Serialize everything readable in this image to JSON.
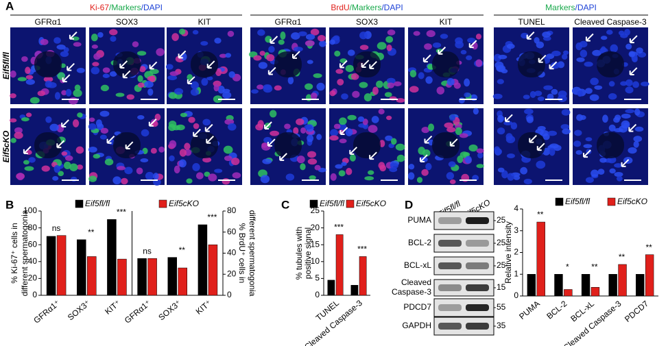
{
  "panel_a": {
    "letter": "A",
    "groups": [
      {
        "parts": [
          {
            "text": "Ki-67",
            "color": "#e0201b"
          },
          {
            "text": "/Markers",
            "color": "#17a84a"
          },
          {
            "text": "/DAPI",
            "color": "#1a3fd6"
          }
        ],
        "columns": [
          "GFRα1",
          "SOX3",
          "KIT"
        ]
      },
      {
        "parts": [
          {
            "text": "BrdU",
            "color": "#e0201b"
          },
          {
            "text": "/Markers",
            "color": "#17a84a"
          },
          {
            "text": "/DAPI",
            "color": "#1a3fd6"
          }
        ],
        "columns": [
          "GFRα1",
          "SOX3",
          "KIT"
        ]
      },
      {
        "parts": [
          {
            "text": "Markers",
            "color": "#17a84a"
          },
          {
            "text": "/DAPI",
            "color": "#1a3fd6"
          }
        ],
        "columns": [
          "TUNEL",
          "Cleaved Caspase-3"
        ]
      }
    ],
    "rows": [
      "Eif5fl/fl",
      "Eif5cKO"
    ]
  },
  "panel_d_blot": {
    "letter": "D",
    "lanes": [
      "Eif5fl/fl",
      "Eif5cKO"
    ],
    "proteins": [
      "PUMA",
      "BCL-2",
      "BCL-xL",
      "Cleaved Caspase-3",
      "PDCD7",
      "GAPDH"
    ],
    "kda": [
      25,
      25,
      25,
      15,
      55,
      35
    ]
  },
  "chart_data": [
    {
      "type": "bar",
      "letter": "B",
      "ylabel": [
        "% Ki-67⁺ cells in",
        "different spermatogonia"
      ],
      "y2label": [
        "% BrdU⁺ cells in",
        "different spermatogonia"
      ],
      "categories": [
        "GFRα1⁺",
        "SOX3⁺",
        "KIT⁺",
        "GFRα1⁺",
        "SOX3⁺",
        "KIT⁺"
      ],
      "category_axis": [
        "y",
        "y",
        "y",
        "y2",
        "y2",
        "y2"
      ],
      "series": [
        {
          "name": "Eif5fl/fl",
          "color": "#000000",
          "values": [
            70,
            66,
            90,
            35,
            36,
            67
          ]
        },
        {
          "name": "Eif5cKO",
          "color": "#e0201b",
          "values": [
            71,
            46,
            43,
            35,
            26,
            48
          ]
        }
      ],
      "significance": [
        "ns",
        "**",
        "***",
        "ns",
        "**",
        "***"
      ],
      "ylim": [
        0,
        100
      ],
      "yticks": [
        0,
        20,
        40,
        60,
        80,
        100
      ],
      "y2lim": [
        0,
        80
      ],
      "y2ticks": [
        0,
        20,
        40,
        60,
        80
      ]
    },
    {
      "type": "bar",
      "letter": "C",
      "ylabel": [
        "% tubules with",
        "positive signal"
      ],
      "categories": [
        "TUNEL",
        "Cleaved Caspase-3"
      ],
      "series": [
        {
          "name": "Eif5fl/fl",
          "color": "#000000",
          "values": [
            4.5,
            3
          ]
        },
        {
          "name": "Eif5cKO",
          "color": "#e0201b",
          "values": [
            18,
            11.5
          ]
        }
      ],
      "significance": [
        "***",
        "***"
      ],
      "ylim": [
        0,
        25
      ],
      "yticks": [
        0,
        5,
        10,
        15,
        20,
        25
      ]
    },
    {
      "type": "bar",
      "ylabel": [
        "Relative intensity"
      ],
      "categories": [
        "PUMA",
        "BCL-2",
        "BCL-xL",
        "Cleaved Caspase-3",
        "PDCD7"
      ],
      "series": [
        {
          "name": "Eif5fl/fl",
          "color": "#000000",
          "values": [
            1,
            1,
            1,
            1,
            1
          ]
        },
        {
          "name": "Eif5cKO",
          "color": "#e0201b",
          "values": [
            3.4,
            0.3,
            0.4,
            1.45,
            1.9
          ]
        }
      ],
      "significance": [
        "**",
        "*",
        "**",
        "**",
        "**"
      ],
      "ylim": [
        0,
        4
      ],
      "yticks": [
        0,
        1,
        2,
        3,
        4
      ]
    }
  ]
}
